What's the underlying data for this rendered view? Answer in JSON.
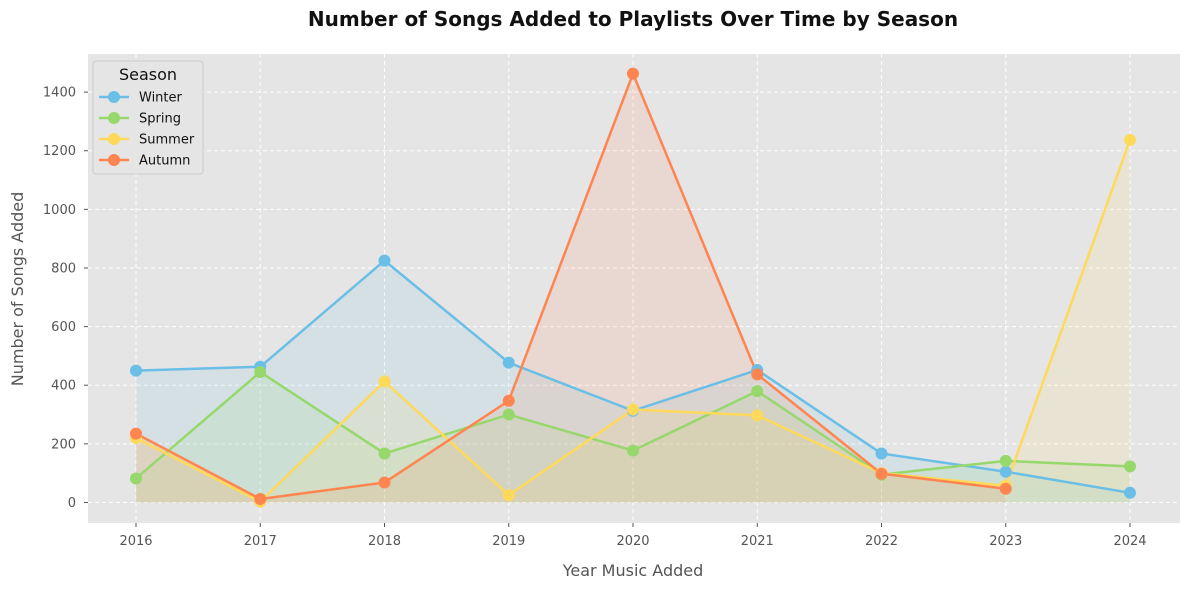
{
  "chart_data": {
    "type": "line",
    "title": "Number of Songs Added to Playlists Over Time by Season",
    "xlabel": "Year Music Added",
    "ylabel": "Number of Songs Added",
    "x": [
      "2016",
      "2017",
      "2018",
      "2019",
      "2020",
      "2021",
      "2022",
      "2023",
      "2024"
    ],
    "yticks": [
      0,
      200,
      400,
      600,
      800,
      1000,
      1200,
      1400
    ],
    "ylim": [
      -70,
      1530
    ],
    "grid": true,
    "legend": {
      "title": "Season",
      "position": "top-left"
    },
    "series": [
      {
        "name": "Winter",
        "color": "#6bbfe6",
        "values": [
          450,
          463,
          825,
          477,
          313,
          452,
          167,
          105,
          33
        ]
      },
      {
        "name": "Spring",
        "color": "#96d86c",
        "values": [
          82,
          445,
          167,
          300,
          177,
          380,
          95,
          142,
          123
        ]
      },
      {
        "name": "Summer",
        "color": "#ffd95a",
        "values": [
          220,
          3,
          413,
          25,
          317,
          297,
          100,
          57,
          1237
        ]
      },
      {
        "name": "Autumn",
        "color": "#ff8550",
        "values": [
          235,
          12,
          68,
          347,
          1463,
          437,
          98,
          47,
          null
        ]
      }
    ]
  }
}
